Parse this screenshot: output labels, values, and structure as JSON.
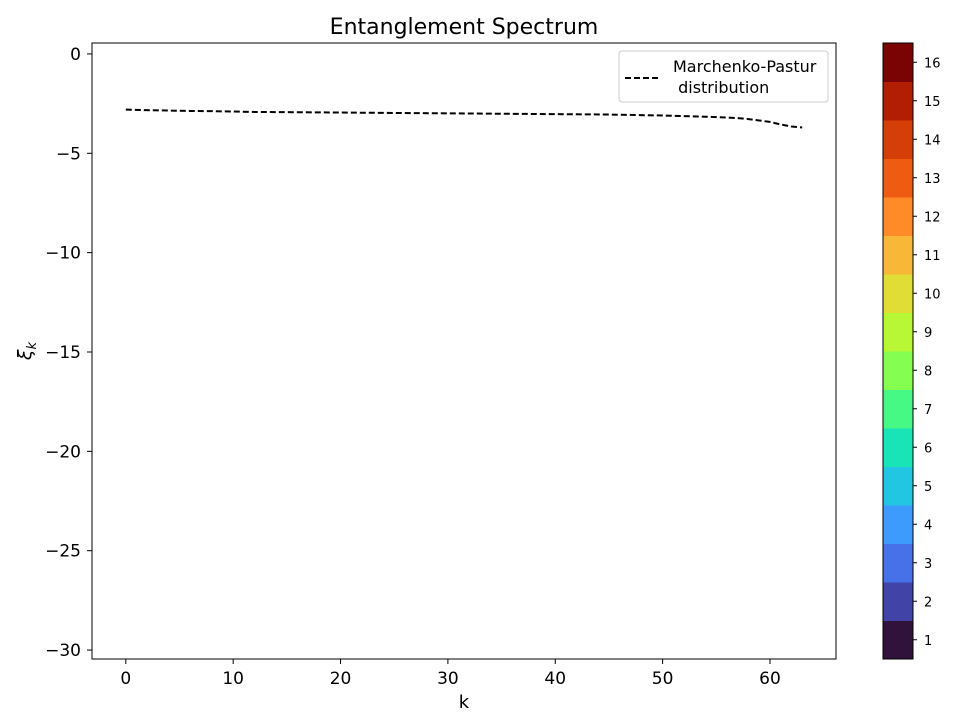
{
  "chart_data": {
    "type": "line",
    "title": "Entanglement Spectrum",
    "xlabel": "k",
    "ylabel": "ξ",
    "ylabel_sub": "k",
    "xlim": [
      -3.15,
      66.15
    ],
    "ylim": [
      -30.45,
      0.55
    ],
    "xticks": [
      0,
      10,
      20,
      30,
      40,
      50,
      60
    ],
    "yticks": [
      0,
      -5,
      -10,
      -15,
      -20,
      -25,
      -30
    ],
    "ytick_labels": [
      "0",
      "−5",
      "−10",
      "−15",
      "−20",
      "−25",
      "−30"
    ],
    "grid": false,
    "legend_position": "top-right",
    "series": [
      {
        "name": "Marchenko-Pastur\n distribution",
        "legend_lines": [
          "Marchenko-Pastur",
          " distribution"
        ],
        "style": "dashed",
        "color": "#000000",
        "x": [
          0,
          2,
          4,
          6,
          8,
          10,
          12,
          15,
          20,
          25,
          30,
          35,
          40,
          45,
          48,
          50,
          52,
          54,
          56,
          57,
          58,
          59,
          60,
          61,
          62,
          63
        ],
        "y": [
          -2.8,
          -2.83,
          -2.85,
          -2.87,
          -2.88,
          -2.9,
          -2.92,
          -2.93,
          -2.95,
          -2.97,
          -2.99,
          -3.01,
          -3.03,
          -3.05,
          -3.08,
          -3.1,
          -3.13,
          -3.16,
          -3.2,
          -3.23,
          -3.28,
          -3.35,
          -3.42,
          -3.55,
          -3.65,
          -3.7
        ]
      }
    ],
    "colorbar": {
      "labels": [
        "1",
        "2",
        "3",
        "4",
        "5",
        "6",
        "7",
        "8",
        "9",
        "10",
        "11",
        "12",
        "13",
        "14",
        "15",
        "16"
      ],
      "colors": [
        "#30123b",
        "#4143a7",
        "#4771e9",
        "#3e9bfe",
        "#22c5e2",
        "#18e4b7",
        "#46f884",
        "#84ff4f",
        "#b7f735",
        "#e1dd37",
        "#f8b736",
        "#fe8b27",
        "#f05b12",
        "#d53e06",
        "#b11e02",
        "#7a0403"
      ]
    }
  }
}
